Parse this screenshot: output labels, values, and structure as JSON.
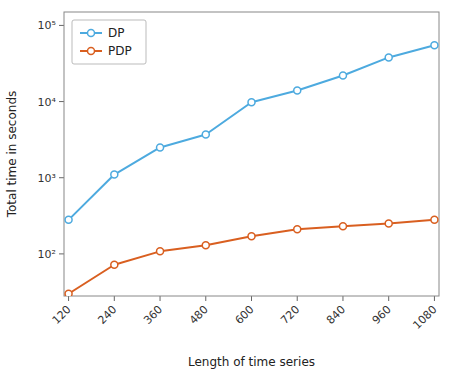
{
  "chart_data": {
    "type": "line",
    "x": [
      120,
      240,
      360,
      480,
      600,
      720,
      840,
      960,
      1080
    ],
    "series": [
      {
        "name": "DP",
        "color": "#4DAADF",
        "values": [
          280,
          1100,
          2500,
          3700,
          9800,
          14000,
          22000,
          38000,
          55000
        ]
      },
      {
        "name": "PDP",
        "color": "#D95F20",
        "values": [
          30,
          72,
          108,
          130,
          170,
          210,
          230,
          250,
          280
        ]
      }
    ],
    "xlabel": "Length of time series",
    "ylabel": "Total time in seconds",
    "xlim": [
      108,
      1092
    ],
    "ylim": [
      28,
      150000
    ],
    "xticks": [
      120,
      240,
      360,
      480,
      600,
      720,
      840,
      960,
      1080
    ],
    "yticks": [
      {
        "value": 100,
        "label": "10²"
      },
      {
        "value": 1000,
        "label": "10³"
      },
      {
        "value": 10000,
        "label": "10⁴"
      },
      {
        "value": 100000,
        "label": "10⁵"
      }
    ],
    "log": "y",
    "marker": "circle",
    "legend": "upper left",
    "grid": false
  }
}
